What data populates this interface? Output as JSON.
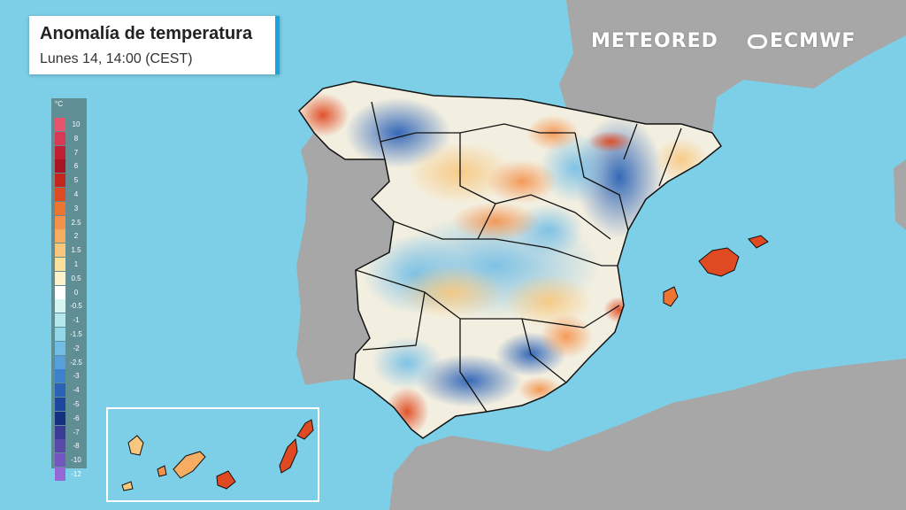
{
  "header": {
    "title": "Anomalía de temperatura",
    "subtitle": "Lunes 14, 14:00 (CEST)"
  },
  "brands": {
    "meteored": "METEORED",
    "ecmwf": "ECMWF"
  },
  "legend": {
    "unit": "°C",
    "entries": [
      {
        "label": "10",
        "color": "#e8546b"
      },
      {
        "label": "8",
        "color": "#d83a55"
      },
      {
        "label": "7",
        "color": "#c02031"
      },
      {
        "label": "6",
        "color": "#a8141f"
      },
      {
        "label": "5",
        "color": "#c4261c"
      },
      {
        "label": "4",
        "color": "#e04a22"
      },
      {
        "label": "3",
        "color": "#ee7432"
      },
      {
        "label": "2.5",
        "color": "#f4914a"
      },
      {
        "label": "2",
        "color": "#f6ad62"
      },
      {
        "label": "1.5",
        "color": "#f8c77d"
      },
      {
        "label": "1",
        "color": "#fbe09c"
      },
      {
        "label": "0.5",
        "color": "#fdf1c9"
      },
      {
        "label": "0",
        "color": "#ffffff"
      },
      {
        "label": "-0.5",
        "color": "#d6f4f2"
      },
      {
        "label": "-1",
        "color": "#b5e8ec"
      },
      {
        "label": "-1.5",
        "color": "#93d7ea"
      },
      {
        "label": "-2",
        "color": "#72bde6"
      },
      {
        "label": "-2.5",
        "color": "#549fdc"
      },
      {
        "label": "-3",
        "color": "#3d80cc"
      },
      {
        "label": "-4",
        "color": "#2b62b6"
      },
      {
        "label": "-5",
        "color": "#1d479c"
      },
      {
        "label": "-6",
        "color": "#163081"
      },
      {
        "label": "-7",
        "color": "#3b3a96"
      },
      {
        "label": "-8",
        "color": "#5a49ab"
      },
      {
        "label": "-10",
        "color": "#7556c0"
      },
      {
        "label": "-12",
        "color": "#9468d6"
      }
    ]
  },
  "colors": {
    "sea": "#7ccfe6",
    "land": "#a7a7a7",
    "accent": "#1aa3dc"
  }
}
